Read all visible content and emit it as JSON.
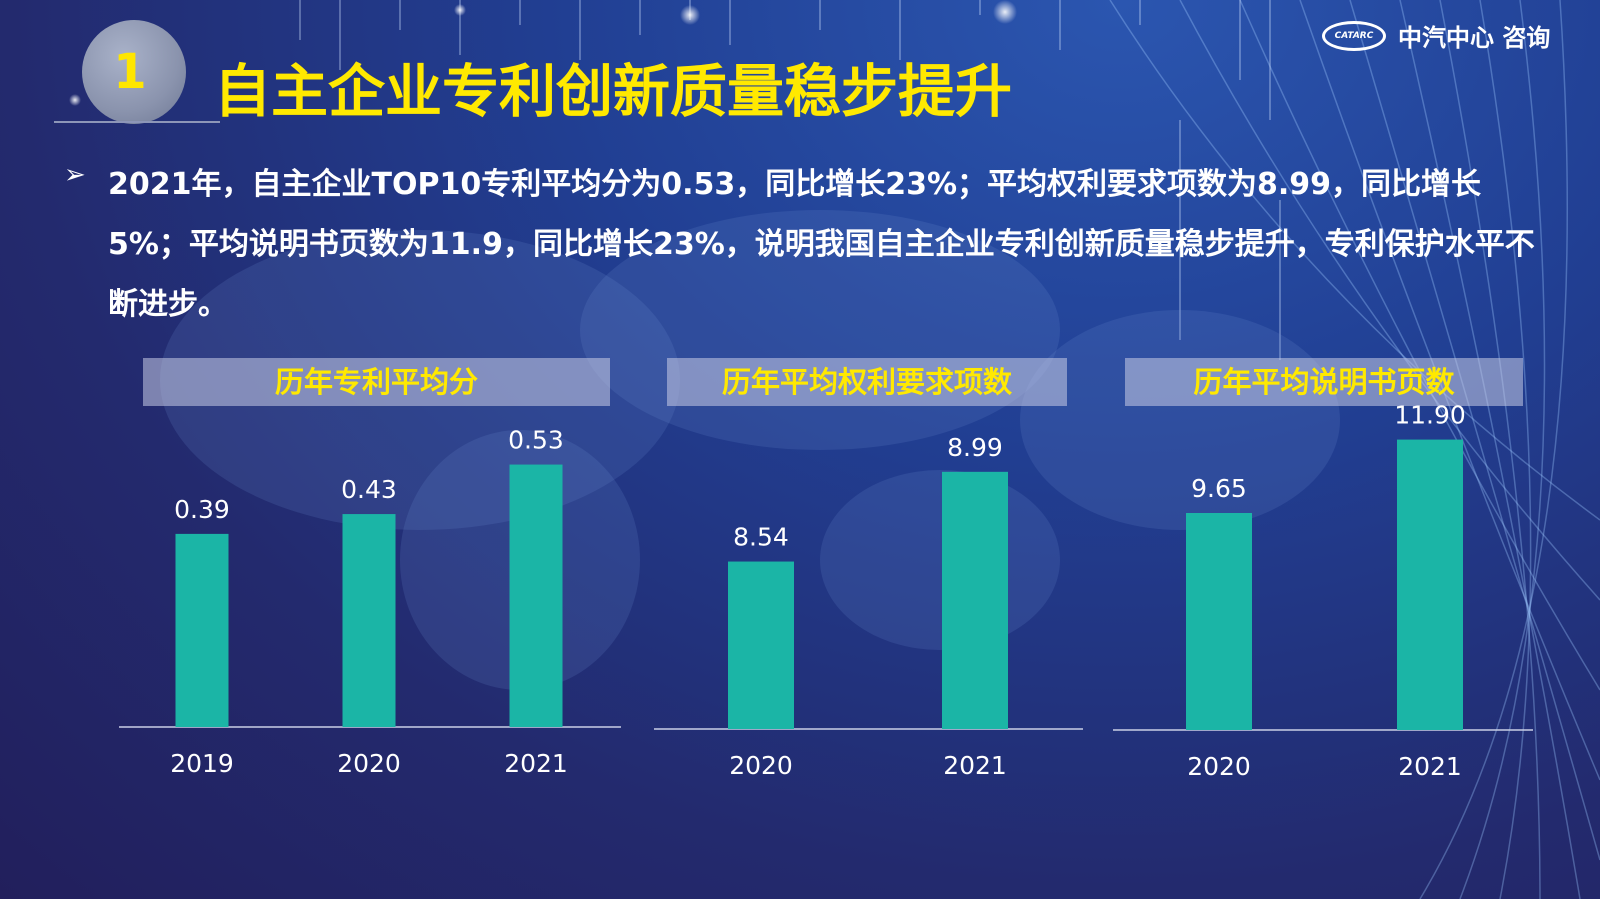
{
  "section_number": "1",
  "title": "自主企业专利创新质量稳步提升",
  "logo": {
    "mark": "CATARC",
    "text": "中汽中心 咨询"
  },
  "bullet_symbol": "➢",
  "paragraph": "2021年，自主企业TOP10专利平均分为0.53，同比增长23%；平均权利要求项数为8.99，同比增长5%；平均说明书页数为11.9，同比增长23%，说明我国自主企业专利创新质量稳步提升，专利保护水平不断进步。",
  "colors": {
    "bar": "#1bb5a6",
    "title_yellow": "#ffe900"
  },
  "chart_data": [
    {
      "type": "bar",
      "title": "历年专利平均分",
      "categories": [
        "2019",
        "2020",
        "2021"
      ],
      "values": [
        0.39,
        0.43,
        0.53
      ],
      "labels": [
        "0.39",
        "0.43",
        "0.53"
      ],
      "ylim": [
        0,
        0.62
      ]
    },
    {
      "type": "bar",
      "title": "历年平均权利要求项数",
      "categories": [
        "2020",
        "2021"
      ],
      "values": [
        8.54,
        8.99
      ],
      "labels": [
        "8.54",
        "8.99"
      ],
      "ylim": [
        7.7,
        9.25
      ]
    },
    {
      "type": "bar",
      "title": "历年平均说明书页数",
      "categories": [
        "2020",
        "2021"
      ],
      "values": [
        9.65,
        11.9
      ],
      "labels": [
        "9.65",
        "11.90"
      ],
      "ylim": [
        3.0,
        12.5
      ]
    }
  ]
}
